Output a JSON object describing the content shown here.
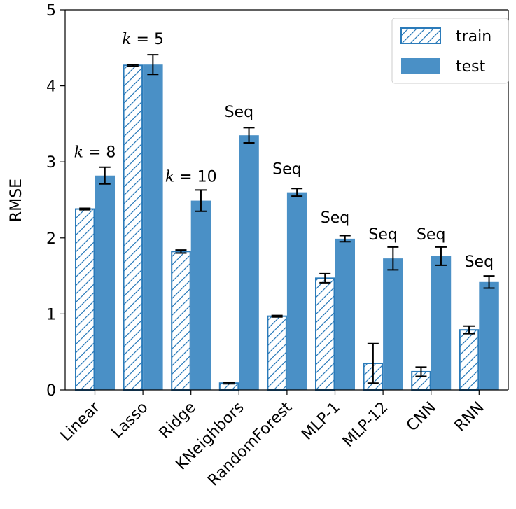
{
  "chart_data": {
    "type": "bar",
    "categories": [
      "Linear",
      "Lasso",
      "Ridge",
      "KNeighbors",
      "RandomForest",
      "MLP-1",
      "MLP-12",
      "CNN",
      "RNN"
    ],
    "ylabel": "RMSE",
    "xlabel": "",
    "title": "",
    "ylim": [
      0,
      5
    ],
    "yticks": [
      0,
      1,
      2,
      3,
      4,
      5
    ],
    "grid": false,
    "legend_position": "top-right",
    "series": [
      {
        "name": "train",
        "style": "hatched",
        "values": [
          2.38,
          4.27,
          1.82,
          0.09,
          0.97,
          1.47,
          0.35,
          0.24,
          0.79
        ],
        "errors": [
          0.01,
          0.01,
          0.02,
          0.01,
          0.01,
          0.06,
          0.26,
          0.06,
          0.05
        ]
      },
      {
        "name": "test",
        "style": "solid",
        "values": [
          2.82,
          4.28,
          2.49,
          3.35,
          2.6,
          1.99,
          1.73,
          1.76,
          1.42
        ],
        "errors": [
          0.11,
          0.13,
          0.14,
          0.1,
          0.05,
          0.04,
          0.15,
          0.12,
          0.08
        ]
      }
    ],
    "annotations": [
      {
        "category": "Linear",
        "text": "k = 8",
        "italic_k": true,
        "y": 3.06
      },
      {
        "category": "Lasso",
        "text": "k = 5",
        "italic_k": true,
        "y": 4.55
      },
      {
        "category": "Ridge",
        "text": "k = 10",
        "italic_k": true,
        "y": 2.74
      },
      {
        "category": "KNeighbors",
        "text": "Seq",
        "italic_k": false,
        "y": 3.59
      },
      {
        "category": "RandomForest",
        "text": "Seq",
        "italic_k": false,
        "y": 2.84
      },
      {
        "category": "MLP-1",
        "text": "Seq",
        "italic_k": false,
        "y": 2.2
      },
      {
        "category": "MLP-12",
        "text": "Seq",
        "italic_k": false,
        "y": 1.98
      },
      {
        "category": "CNN",
        "text": "Seq",
        "italic_k": false,
        "y": 1.98
      },
      {
        "category": "RNN",
        "text": "Seq",
        "italic_k": false,
        "y": 1.62
      }
    ],
    "colors": {
      "bar": "#4a90c6",
      "hatch_edge": "#2b7bba",
      "error": "#000000"
    }
  }
}
